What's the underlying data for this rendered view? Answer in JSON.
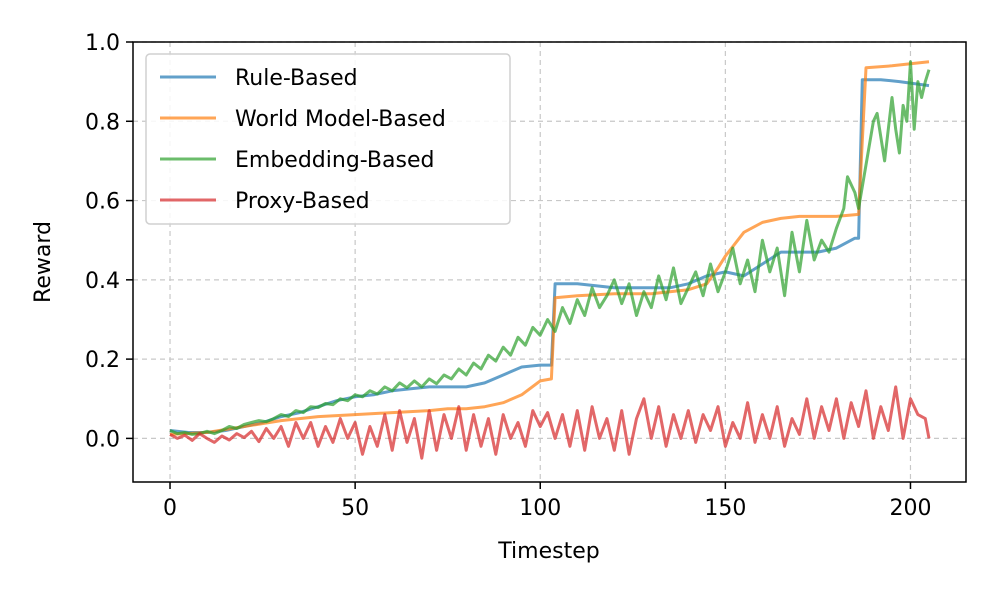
{
  "chart_data": {
    "type": "line",
    "title": "",
    "xlabel": "Timestep",
    "ylabel": "Reward",
    "xlim": [
      -10,
      215
    ],
    "ylim": [
      -0.11,
      1.0
    ],
    "xticks": [
      0,
      50,
      100,
      150,
      200
    ],
    "yticks": [
      0.0,
      0.2,
      0.4,
      0.6,
      0.8,
      1.0
    ],
    "xtick_labels": [
      "0",
      "50",
      "100",
      "150",
      "200"
    ],
    "ytick_labels": [
      "0.0",
      "0.2",
      "0.4",
      "0.6",
      "0.8",
      "1.0"
    ],
    "grid": true,
    "legend_position": "top-left",
    "series": [
      {
        "name": "Rule-Based",
        "color": "#1f77b4",
        "points": [
          [
            0,
            0.02
          ],
          [
            5,
            0.015
          ],
          [
            10,
            0.015
          ],
          [
            15,
            0.02
          ],
          [
            20,
            0.03
          ],
          [
            25,
            0.04
          ],
          [
            30,
            0.055
          ],
          [
            35,
            0.065
          ],
          [
            40,
            0.08
          ],
          [
            45,
            0.095
          ],
          [
            50,
            0.105
          ],
          [
            55,
            0.11
          ],
          [
            60,
            0.12
          ],
          [
            65,
            0.125
          ],
          [
            70,
            0.13
          ],
          [
            75,
            0.13
          ],
          [
            80,
            0.13
          ],
          [
            85,
            0.14
          ],
          [
            90,
            0.16
          ],
          [
            95,
            0.18
          ],
          [
            100,
            0.185
          ],
          [
            103,
            0.185
          ],
          [
            104,
            0.39
          ],
          [
            110,
            0.39
          ],
          [
            115,
            0.385
          ],
          [
            120,
            0.38
          ],
          [
            130,
            0.38
          ],
          [
            135,
            0.38
          ],
          [
            140,
            0.39
          ],
          [
            145,
            0.41
          ],
          [
            150,
            0.42
          ],
          [
            155,
            0.41
          ],
          [
            160,
            0.44
          ],
          [
            165,
            0.47
          ],
          [
            170,
            0.47
          ],
          [
            175,
            0.47
          ],
          [
            180,
            0.48
          ],
          [
            185,
            0.505
          ],
          [
            186,
            0.505
          ],
          [
            187,
            0.905
          ],
          [
            192,
            0.905
          ],
          [
            197,
            0.9
          ],
          [
            205,
            0.89
          ]
        ]
      },
      {
        "name": "World Model-Based",
        "color": "#ff7f0e",
        "points": [
          [
            0,
            0.01
          ],
          [
            10,
            0.015
          ],
          [
            20,
            0.03
          ],
          [
            30,
            0.045
          ],
          [
            40,
            0.055
          ],
          [
            50,
            0.06
          ],
          [
            60,
            0.065
          ],
          [
            70,
            0.07
          ],
          [
            75,
            0.075
          ],
          [
            80,
            0.075
          ],
          [
            85,
            0.08
          ],
          [
            90,
            0.09
          ],
          [
            95,
            0.11
          ],
          [
            100,
            0.145
          ],
          [
            103,
            0.15
          ],
          [
            104,
            0.355
          ],
          [
            110,
            0.36
          ],
          [
            120,
            0.365
          ],
          [
            130,
            0.365
          ],
          [
            135,
            0.37
          ],
          [
            140,
            0.375
          ],
          [
            145,
            0.39
          ],
          [
            148,
            0.43
          ],
          [
            150,
            0.46
          ],
          [
            155,
            0.52
          ],
          [
            160,
            0.545
          ],
          [
            165,
            0.555
          ],
          [
            170,
            0.56
          ],
          [
            175,
            0.56
          ],
          [
            180,
            0.56
          ],
          [
            186,
            0.565
          ],
          [
            188,
            0.935
          ],
          [
            195,
            0.94
          ],
          [
            200,
            0.945
          ],
          [
            205,
            0.95
          ]
        ]
      },
      {
        "name": "Embedding-Based",
        "color": "#2ca02c",
        "points": [
          [
            0,
            0.02
          ],
          [
            2,
            0.012
          ],
          [
            4,
            0.015
          ],
          [
            6,
            0.01
          ],
          [
            8,
            0.012
          ],
          [
            10,
            0.018
          ],
          [
            12,
            0.012
          ],
          [
            14,
            0.02
          ],
          [
            16,
            0.03
          ],
          [
            18,
            0.025
          ],
          [
            20,
            0.035
          ],
          [
            22,
            0.04
          ],
          [
            24,
            0.045
          ],
          [
            26,
            0.042
          ],
          [
            28,
            0.05
          ],
          [
            30,
            0.06
          ],
          [
            32,
            0.055
          ],
          [
            34,
            0.07
          ],
          [
            36,
            0.065
          ],
          [
            38,
            0.08
          ],
          [
            40,
            0.078
          ],
          [
            42,
            0.088
          ],
          [
            44,
            0.085
          ],
          [
            46,
            0.1
          ],
          [
            48,
            0.095
          ],
          [
            50,
            0.11
          ],
          [
            52,
            0.105
          ],
          [
            54,
            0.12
          ],
          [
            56,
            0.112
          ],
          [
            58,
            0.13
          ],
          [
            60,
            0.12
          ],
          [
            62,
            0.14
          ],
          [
            64,
            0.128
          ],
          [
            66,
            0.145
          ],
          [
            68,
            0.13
          ],
          [
            70,
            0.15
          ],
          [
            72,
            0.138
          ],
          [
            74,
            0.16
          ],
          [
            76,
            0.15
          ],
          [
            78,
            0.175
          ],
          [
            80,
            0.16
          ],
          [
            82,
            0.19
          ],
          [
            84,
            0.175
          ],
          [
            86,
            0.21
          ],
          [
            88,
            0.195
          ],
          [
            90,
            0.23
          ],
          [
            92,
            0.21
          ],
          [
            94,
            0.255
          ],
          [
            96,
            0.235
          ],
          [
            98,
            0.28
          ],
          [
            100,
            0.26
          ],
          [
            102,
            0.3
          ],
          [
            104,
            0.27
          ],
          [
            106,
            0.33
          ],
          [
            108,
            0.29
          ],
          [
            110,
            0.35
          ],
          [
            112,
            0.31
          ],
          [
            114,
            0.38
          ],
          [
            116,
            0.33
          ],
          [
            118,
            0.36
          ],
          [
            120,
            0.4
          ],
          [
            122,
            0.34
          ],
          [
            124,
            0.39
          ],
          [
            126,
            0.31
          ],
          [
            128,
            0.37
          ],
          [
            130,
            0.33
          ],
          [
            132,
            0.41
          ],
          [
            134,
            0.35
          ],
          [
            136,
            0.43
          ],
          [
            138,
            0.34
          ],
          [
            140,
            0.38
          ],
          [
            142,
            0.42
          ],
          [
            144,
            0.36
          ],
          [
            146,
            0.44
          ],
          [
            148,
            0.37
          ],
          [
            150,
            0.42
          ],
          [
            152,
            0.48
          ],
          [
            154,
            0.39
          ],
          [
            156,
            0.45
          ],
          [
            158,
            0.37
          ],
          [
            160,
            0.5
          ],
          [
            162,
            0.42
          ],
          [
            164,
            0.48
          ],
          [
            166,
            0.36
          ],
          [
            168,
            0.52
          ],
          [
            170,
            0.42
          ],
          [
            172,
            0.55
          ],
          [
            174,
            0.45
          ],
          [
            176,
            0.5
          ],
          [
            178,
            0.47
          ],
          [
            180,
            0.53
          ],
          [
            182,
            0.58
          ],
          [
            183,
            0.66
          ],
          [
            185,
            0.62
          ],
          [
            186,
            0.58
          ],
          [
            188,
            0.69
          ],
          [
            190,
            0.8
          ],
          [
            191,
            0.82
          ],
          [
            193,
            0.7
          ],
          [
            195,
            0.86
          ],
          [
            196,
            0.78
          ],
          [
            197,
            0.72
          ],
          [
            198,
            0.84
          ],
          [
            199,
            0.8
          ],
          [
            200,
            0.95
          ],
          [
            201,
            0.78
          ],
          [
            202,
            0.9
          ],
          [
            203,
            0.86
          ],
          [
            204,
            0.9
          ],
          [
            205,
            0.93
          ]
        ]
      },
      {
        "name": "Proxy-Based",
        "color": "#d62728",
        "points": [
          [
            0,
            0.01
          ],
          [
            2,
            0.0
          ],
          [
            4,
            0.008
          ],
          [
            6,
            -0.005
          ],
          [
            8,
            0.012
          ],
          [
            10,
            0.0
          ],
          [
            12,
            -0.01
          ],
          [
            14,
            0.006
          ],
          [
            16,
            -0.004
          ],
          [
            18,
            0.012
          ],
          [
            20,
            0.002
          ],
          [
            22,
            0.018
          ],
          [
            24,
            -0.008
          ],
          [
            26,
            0.025
          ],
          [
            28,
            0.0
          ],
          [
            30,
            0.03
          ],
          [
            32,
            -0.02
          ],
          [
            34,
            0.04
          ],
          [
            36,
            0.0
          ],
          [
            38,
            0.04
          ],
          [
            40,
            -0.02
          ],
          [
            42,
            0.03
          ],
          [
            44,
            -0.01
          ],
          [
            46,
            0.05
          ],
          [
            48,
            0.0
          ],
          [
            50,
            0.04
          ],
          [
            52,
            -0.04
          ],
          [
            54,
            0.03
          ],
          [
            56,
            -0.02
          ],
          [
            58,
            0.06
          ],
          [
            60,
            -0.03
          ],
          [
            62,
            0.07
          ],
          [
            64,
            -0.01
          ],
          [
            66,
            0.05
          ],
          [
            68,
            -0.05
          ],
          [
            70,
            0.07
          ],
          [
            72,
            -0.03
          ],
          [
            74,
            0.06
          ],
          [
            76,
            0.0
          ],
          [
            78,
            0.08
          ],
          [
            80,
            -0.03
          ],
          [
            82,
            0.06
          ],
          [
            84,
            -0.02
          ],
          [
            86,
            0.05
          ],
          [
            88,
            -0.04
          ],
          [
            90,
            0.06
          ],
          [
            92,
            0.0
          ],
          [
            94,
            0.04
          ],
          [
            96,
            -0.02
          ],
          [
            98,
            0.07
          ],
          [
            100,
            0.03
          ],
          [
            102,
            0.065
          ],
          [
            104,
            0.0
          ],
          [
            106,
            0.06
          ],
          [
            108,
            -0.02
          ],
          [
            110,
            0.07
          ],
          [
            112,
            -0.03
          ],
          [
            114,
            0.08
          ],
          [
            116,
            0.0
          ],
          [
            118,
            0.05
          ],
          [
            120,
            -0.03
          ],
          [
            122,
            0.07
          ],
          [
            124,
            -0.04
          ],
          [
            126,
            0.05
          ],
          [
            128,
            0.1
          ],
          [
            130,
            0.0
          ],
          [
            132,
            0.08
          ],
          [
            134,
            -0.02
          ],
          [
            136,
            0.06
          ],
          [
            138,
            0.0
          ],
          [
            140,
            0.07
          ],
          [
            142,
            -0.01
          ],
          [
            144,
            0.06
          ],
          [
            146,
            0.02
          ],
          [
            148,
            0.08
          ],
          [
            150,
            -0.02
          ],
          [
            152,
            0.04
          ],
          [
            154,
            0.0
          ],
          [
            156,
            0.09
          ],
          [
            158,
            -0.01
          ],
          [
            160,
            0.06
          ],
          [
            162,
            0.0
          ],
          [
            164,
            0.08
          ],
          [
            166,
            -0.02
          ],
          [
            168,
            0.05
          ],
          [
            170,
            0.01
          ],
          [
            172,
            0.1
          ],
          [
            174,
            0.0
          ],
          [
            176,
            0.08
          ],
          [
            178,
            0.02
          ],
          [
            180,
            0.1
          ],
          [
            182,
            0.0
          ],
          [
            184,
            0.09
          ],
          [
            186,
            0.03
          ],
          [
            188,
            0.12
          ],
          [
            190,
            0.0
          ],
          [
            192,
            0.08
          ],
          [
            194,
            0.02
          ],
          [
            196,
            0.13
          ],
          [
            198,
            0.0
          ],
          [
            200,
            0.1
          ],
          [
            202,
            0.06
          ],
          [
            204,
            0.05
          ],
          [
            205,
            0.0
          ]
        ]
      }
    ]
  }
}
